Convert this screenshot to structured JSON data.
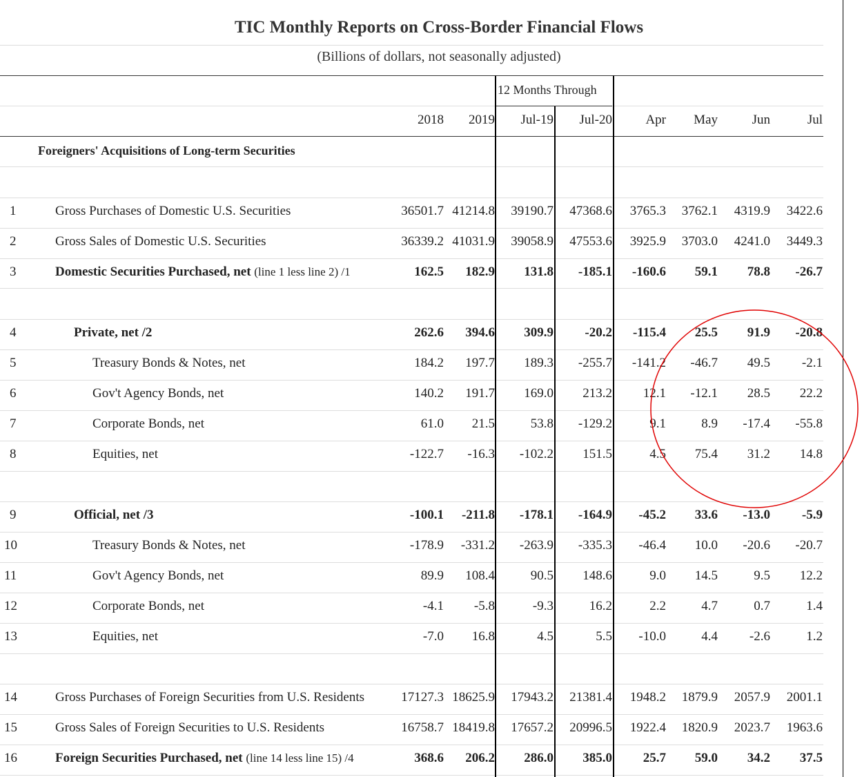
{
  "title": "TIC Monthly Reports on Cross-Border Financial Flows",
  "subtitle": "(Billions of dollars, not seasonally adjusted)",
  "group_header": "12 Months Through",
  "columns": [
    "2018",
    "2019",
    "Jul-19",
    "Jul-20",
    "Apr",
    "May",
    "Jun",
    "Jul"
  ],
  "section_heading": "Foreigners' Acquisitions of Long-term Securities",
  "annotation_color": "#e00000",
  "rows": [
    {
      "num": "1",
      "label": "Gross Purchases of Domestic U.S. Securities",
      "values": [
        "36501.7",
        "41214.8",
        "39190.7",
        "47368.6",
        "3765.3",
        "3762.1",
        "4319.9",
        "3422.6"
      ]
    },
    {
      "num": "2",
      "label": "Gross Sales of Domestic U.S. Securities",
      "values": [
        "36339.2",
        "41031.9",
        "39058.9",
        "47553.6",
        "3925.9",
        "3703.0",
        "4241.0",
        "3449.3"
      ]
    },
    {
      "num": "3",
      "label": "Domestic Securities Purchased, net",
      "note": "(line 1 less line 2) /1",
      "values": [
        "162.5",
        "182.9",
        "131.8",
        "-185.1",
        "-160.6",
        "59.1",
        "78.8",
        "-26.7"
      ]
    },
    {
      "num": "4",
      "label": "Private, net /2",
      "values": [
        "262.6",
        "394.6",
        "309.9",
        "-20.2",
        "-115.4",
        "25.5",
        "91.9",
        "-20.8"
      ]
    },
    {
      "num": "5",
      "label": "Treasury Bonds & Notes, net",
      "values": [
        "184.2",
        "197.7",
        "189.3",
        "-255.7",
        "-141.2",
        "-46.7",
        "49.5",
        "-2.1"
      ]
    },
    {
      "num": "6",
      "label": "Gov't Agency Bonds, net",
      "values": [
        "140.2",
        "191.7",
        "169.0",
        "213.2",
        "12.1",
        "-12.1",
        "28.5",
        "22.2"
      ]
    },
    {
      "num": "7",
      "label": "Corporate Bonds, net",
      "values": [
        "61.0",
        "21.5",
        "53.8",
        "-129.2",
        "9.1",
        "8.9",
        "-17.4",
        "-55.8"
      ]
    },
    {
      "num": "8",
      "label": "Equities, net",
      "values": [
        "-122.7",
        "-16.3",
        "-102.2",
        "151.5",
        "4.5",
        "75.4",
        "31.2",
        "14.8"
      ]
    },
    {
      "num": "9",
      "label": "Official, net /3",
      "values": [
        "-100.1",
        "-211.8",
        "-178.1",
        "-164.9",
        "-45.2",
        "33.6",
        "-13.0",
        "-5.9"
      ]
    },
    {
      "num": "10",
      "label": "Treasury Bonds & Notes, net",
      "values": [
        "-178.9",
        "-331.2",
        "-263.9",
        "-335.3",
        "-46.4",
        "10.0",
        "-20.6",
        "-20.7"
      ]
    },
    {
      "num": "11",
      "label": "Gov't Agency Bonds, net",
      "values": [
        "89.9",
        "108.4",
        "90.5",
        "148.6",
        "9.0",
        "14.5",
        "9.5",
        "12.2"
      ]
    },
    {
      "num": "12",
      "label": "Corporate Bonds, net",
      "values": [
        "-4.1",
        "-5.8",
        "-9.3",
        "16.2",
        "2.2",
        "4.7",
        "0.7",
        "1.4"
      ]
    },
    {
      "num": "13",
      "label": "Equities, net",
      "values": [
        "-7.0",
        "16.8",
        "4.5",
        "5.5",
        "-10.0",
        "4.4",
        "-2.6",
        "1.2"
      ]
    },
    {
      "num": "14",
      "label": "Gross Purchases of Foreign Securities from U.S. Residents",
      "values": [
        "17127.3",
        "18625.9",
        "17943.2",
        "21381.4",
        "1948.2",
        "1879.9",
        "2057.9",
        "2001.1"
      ]
    },
    {
      "num": "15",
      "label": "Gross Sales of Foreign Securities to U.S. Residents",
      "values": [
        "16758.7",
        "18419.8",
        "17657.2",
        "20996.5",
        "1922.4",
        "1820.9",
        "2023.7",
        "1963.6"
      ]
    },
    {
      "num": "16",
      "label": "Foreign Securities Purchased, net",
      "note": "(line 14 less line 15) /4",
      "values": [
        "368.6",
        "206.2",
        "286.0",
        "385.0",
        "25.7",
        "59.0",
        "34.2",
        "37.5"
      ]
    }
  ]
}
